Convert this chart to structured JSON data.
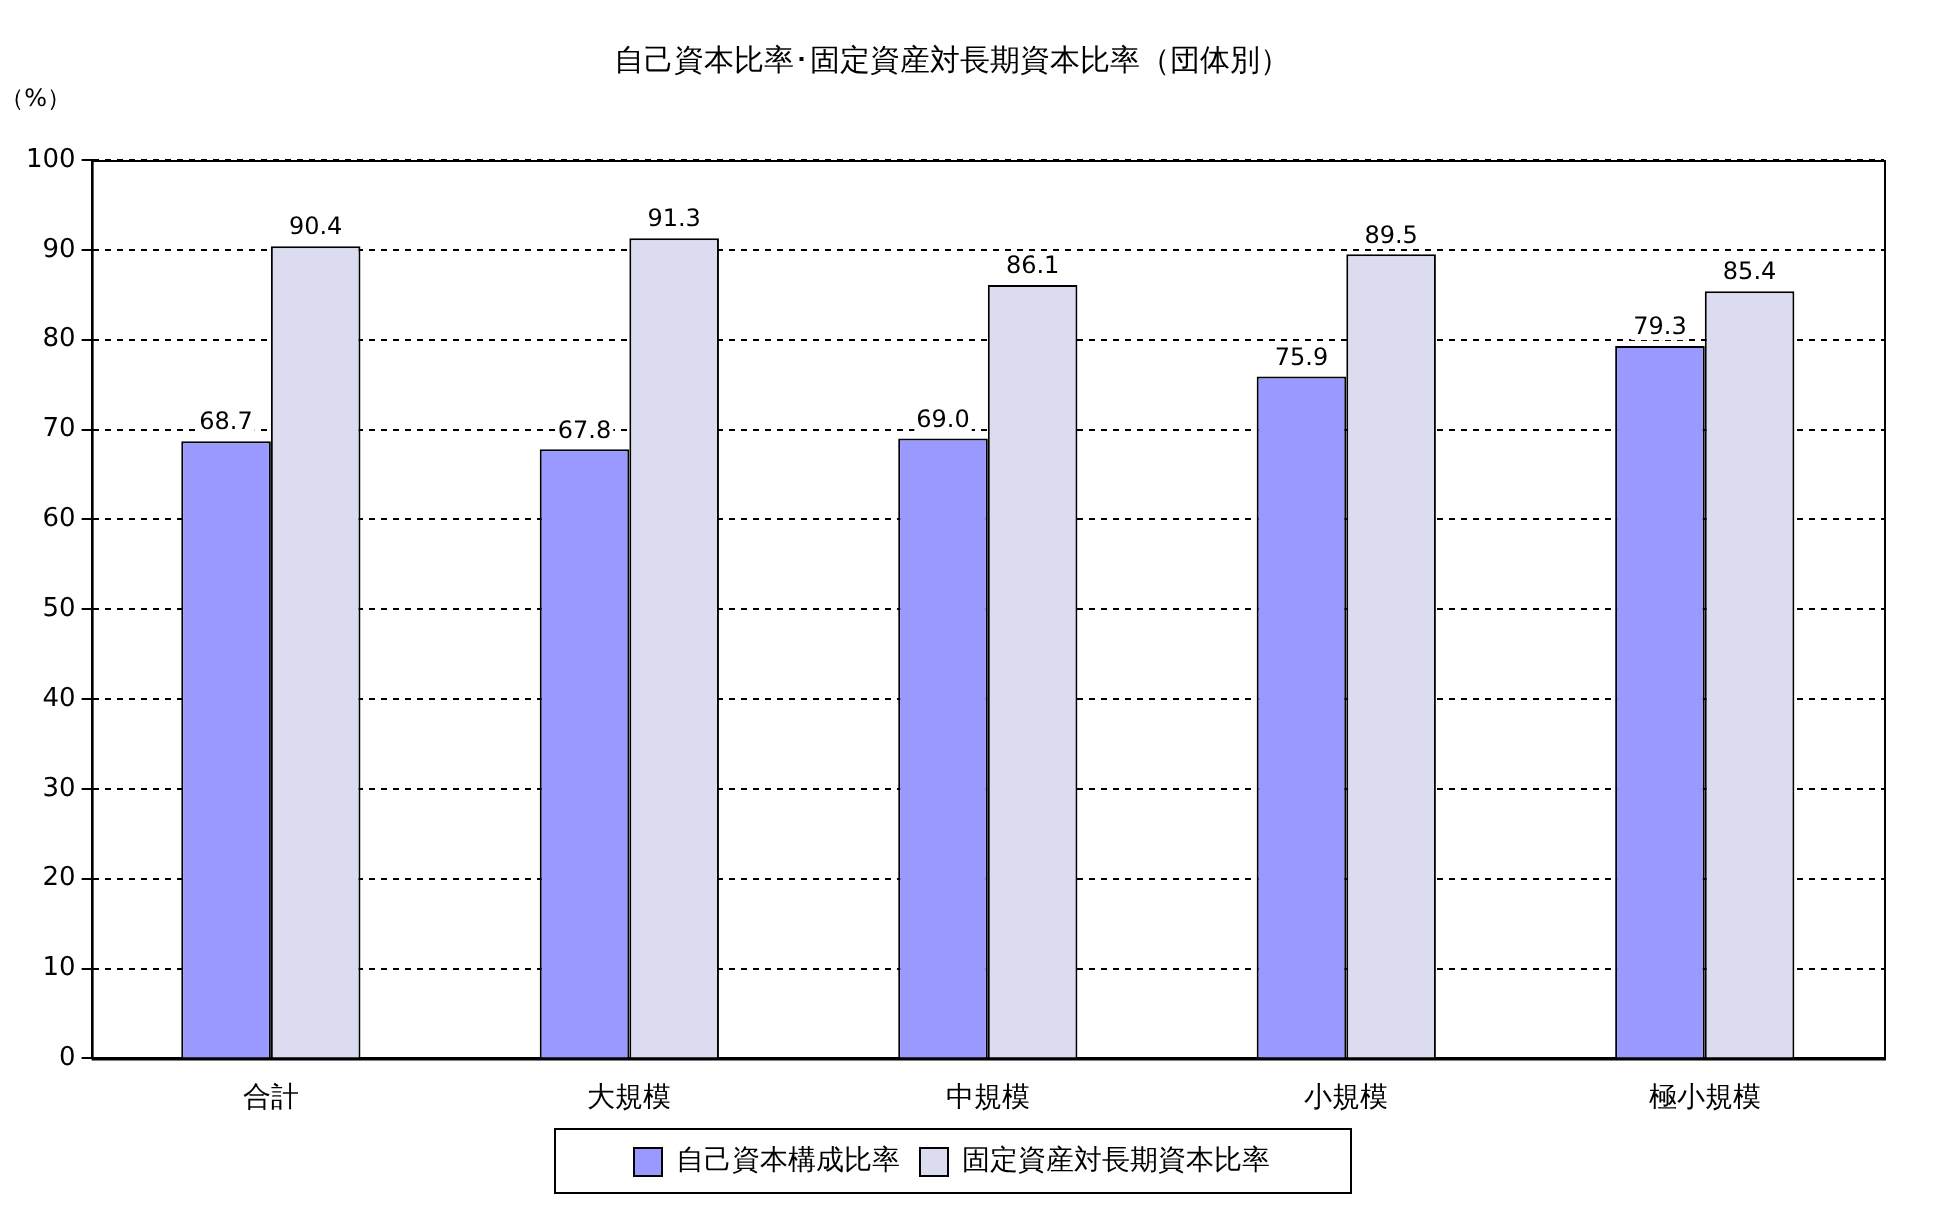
{
  "chart_data": {
    "type": "bar",
    "title": "自己資本比率･固定資産対長期資本比率（団体別）",
    "ylabel": "（%）",
    "categories": [
      "合計",
      "大規模",
      "中規模",
      "小規模",
      "極小規模"
    ],
    "series": [
      {
        "name": "自己資本構成比率",
        "color": "#9999ff",
        "values": [
          68.7,
          67.8,
          69.0,
          75.9,
          79.3
        ],
        "value_labels": [
          "68.7",
          "67.8",
          "69.0",
          "75.9",
          "79.3"
        ]
      },
      {
        "name": "固定資産対長期資本比率",
        "color": "#dcdcf0",
        "values": [
          90.4,
          91.3,
          86.1,
          89.5,
          85.4
        ],
        "value_labels": [
          "90.4",
          "91.3",
          "86.1",
          "89.5",
          "85.4"
        ]
      }
    ],
    "ylim": [
      0,
      100
    ],
    "yticks": [
      0,
      10,
      20,
      30,
      40,
      50,
      60,
      70,
      80,
      90,
      100
    ],
    "grid": "y",
    "legend": "bottom"
  }
}
